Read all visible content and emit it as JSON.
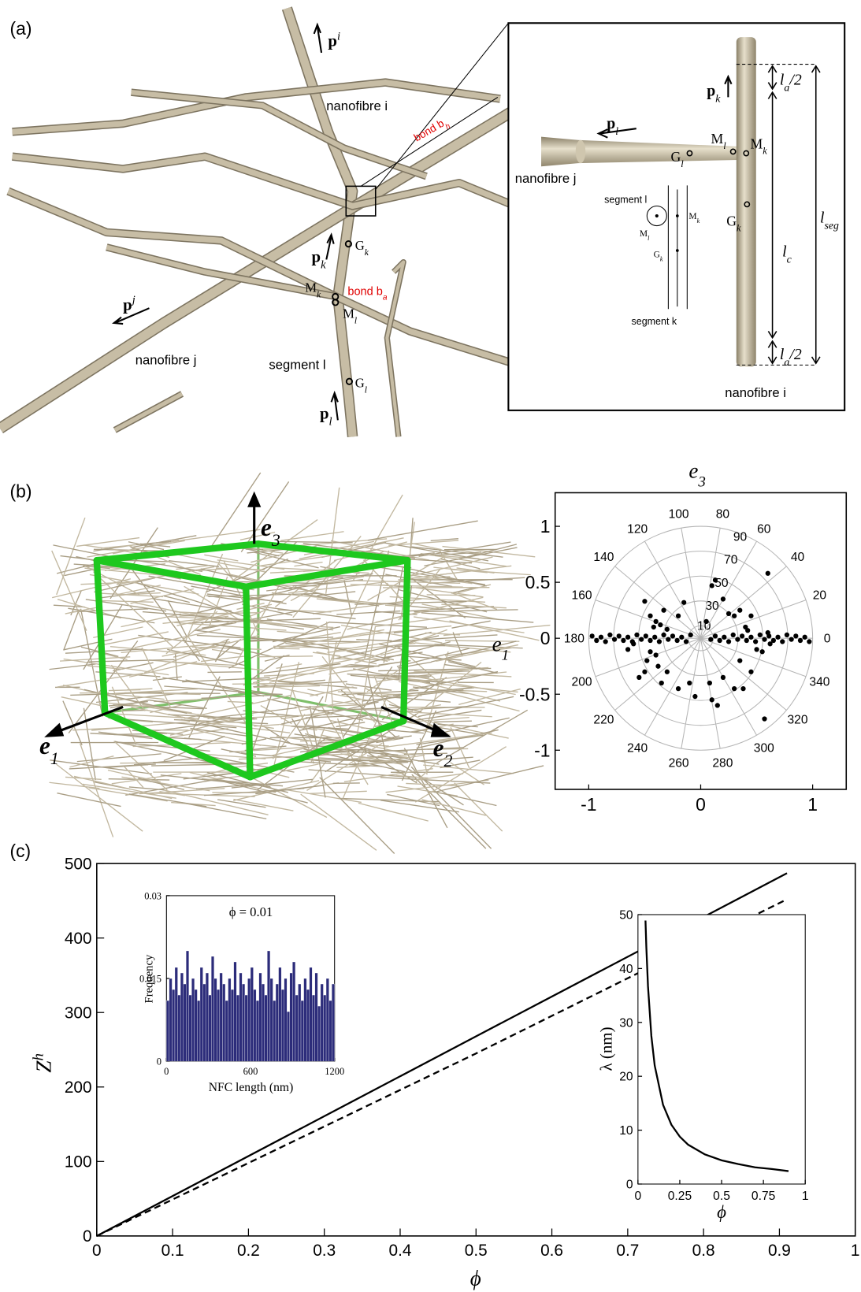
{
  "panel_labels": [
    "(a)",
    "(b)",
    "(c)"
  ],
  "figure_a": {
    "main": [
      {
        "base": "p",
        "sup": "i"
      },
      {
        "base": "nanofibre i"
      },
      {
        "base": "bond b",
        "sub": "h"
      },
      {
        "base": "p",
        "sub": "k"
      },
      {
        "base": "G",
        "sub": "k"
      },
      {
        "base": "M",
        "sub": "k"
      },
      {
        "base": "M",
        "sub": "l"
      },
      {
        "base": "bond b",
        "sub": "a"
      },
      {
        "base": "p",
        "sup": "j"
      },
      {
        "base": "nanofibre j"
      },
      {
        "base": "segment l"
      },
      {
        "base": "G",
        "sub": "l"
      },
      {
        "base": "p",
        "sub": "l"
      }
    ],
    "inset": [
      {
        "base": "p",
        "sub": "k"
      },
      {
        "base": "p",
        "sub": "l"
      },
      {
        "base": "M",
        "sub": "l"
      },
      {
        "base": "M",
        "sub": "k"
      },
      {
        "base": "G",
        "sub": "l"
      },
      {
        "base": "nanofibre j"
      },
      {
        "base": "segment l"
      },
      {
        "base": "M",
        "sub": "l"
      },
      {
        "base": "M",
        "sub": "k"
      },
      {
        "base": "G",
        "sub": "k"
      },
      {
        "base": "segment k"
      },
      {
        "base": "G",
        "sub": "k"
      },
      {
        "base": "l",
        "sub": "a",
        "post": "/2"
      },
      {
        "base": "l",
        "sub": "a",
        "post": "/2"
      },
      {
        "base": "l",
        "sub": "seg"
      },
      {
        "base": "l",
        "sub": "c"
      },
      {
        "base": "nanofibre i"
      }
    ]
  },
  "figure_b": {
    "axes": [
      {
        "base": "e",
        "sub": "3"
      },
      {
        "base": "e",
        "sub": "1"
      },
      {
        "base": "e",
        "sub": "2"
      }
    ]
  },
  "chart_data": [
    {
      "type": "polar_scatter",
      "title": {
        "base": "e",
        "sub": "3"
      },
      "y_label": {
        "base": "e",
        "sub": "1"
      },
      "xlim": [
        -1.3,
        1.3
      ],
      "ylim": [
        -1.35,
        1.3
      ],
      "xticks": [
        -1,
        0,
        1
      ],
      "yticks": [
        -1,
        -0.5,
        0,
        0.5,
        1
      ],
      "rings": [
        10,
        30,
        50,
        70,
        90
      ],
      "angles": [
        0,
        20,
        40,
        60,
        80,
        100,
        120,
        140,
        160,
        180,
        200,
        220,
        240,
        260,
        280,
        300,
        320,
        340
      ],
      "color": "#000000",
      "x": [
        -0.97,
        -0.93,
        -0.89,
        -0.85,
        -0.81,
        -0.77,
        -0.73,
        -0.69,
        -0.65,
        -0.61,
        -0.57,
        -0.53,
        -0.49,
        -0.45,
        -0.41,
        -0.37,
        -0.33,
        -0.29,
        -0.25,
        -0.21,
        -0.17,
        -0.13,
        -0.09,
        0.09,
        0.13,
        0.17,
        0.21,
        0.25,
        0.29,
        0.33,
        0.37,
        0.41,
        0.45,
        0.49,
        0.53,
        0.57,
        0.61,
        0.65,
        0.69,
        0.73,
        0.77,
        0.81,
        0.85,
        0.89,
        0.93,
        0.97,
        0.13,
        0.1,
        -0.5,
        -0.45,
        -0.4,
        -0.42,
        -0.36,
        -0.3,
        -0.33,
        -0.2,
        -0.15,
        0.05,
        0.2,
        0.25,
        0.3,
        0.35,
        0.4,
        0.45,
        0.6,
        0.42,
        -0.45,
        -0.4,
        -0.48,
        -0.5,
        -0.38,
        -0.3,
        -0.35,
        -0.2,
        -0.1,
        -0.05,
        0.1,
        0.15,
        0.08,
        0.2,
        0.3,
        0.38,
        0.45,
        0.35,
        0.5,
        0.55,
        0.57,
        -0.55,
        -0.6,
        -0.65,
        0.6,
        0.62
      ],
      "values": [
        0.02,
        -0.02,
        0.01,
        -0.03,
        0.03,
        -0.01,
        0.02,
        -0.02,
        0.01,
        -0.03,
        0.03,
        -0.01,
        0.02,
        -0.02,
        0.01,
        -0.03,
        0.03,
        -0.01,
        0.02,
        -0.02,
        0.01,
        -0.03,
        0.03,
        -0.01,
        0.02,
        -0.02,
        0.01,
        -0.03,
        0.03,
        -0.01,
        0.02,
        -0.02,
        0.01,
        -0.03,
        0.03,
        -0.01,
        0.02,
        -0.02,
        0.01,
        -0.03,
        0.03,
        -0.01,
        0.02,
        -0.02,
        0.01,
        -0.03,
        0.52,
        0.47,
        0.33,
        0.2,
        0.15,
        0.1,
        0.12,
        0.08,
        0.25,
        0.2,
        0.32,
        0.15,
        0.35,
        0.22,
        0.2,
        0.25,
        0.1,
        0.2,
        0.58,
        0.07,
        -0.12,
        -0.15,
        -0.2,
        -0.3,
        -0.25,
        -0.3,
        -0.4,
        -0.45,
        -0.4,
        -0.52,
        -0.55,
        -0.6,
        -0.4,
        -0.35,
        -0.45,
        -0.45,
        -0.3,
        -0.2,
        -0.1,
        -0.12,
        -0.72,
        -0.35,
        -0.05,
        -0.1,
        0.05,
        -0.05
      ]
    },
    {
      "type": "line",
      "x_label": "ϕ",
      "y_label": {
        "base": "Z",
        "sup": "h"
      },
      "x": [
        0,
        0.5,
        0.91
      ],
      "xlim": [
        0,
        1
      ],
      "ylim": [
        0,
        500
      ],
      "xticks": [
        0,
        0.1,
        0.2,
        0.3,
        0.4,
        0.5,
        0.6,
        0.7,
        0.8,
        0.9,
        1
      ],
      "yticks": [
        0,
        100,
        200,
        300,
        400,
        500
      ],
      "series": [
        {
          "color": "#000000",
          "dash": "solid",
          "values": [
            0,
            268,
            487
          ]
        },
        {
          "color": "#000000",
          "dash": "dashed",
          "values": [
            0,
            245,
            452
          ]
        }
      ]
    },
    {
      "type": "histogram",
      "title": "ϕ = 0.01",
      "x_label": "NFC length (nm)",
      "y_label": "Frequency",
      "xlim": [
        0,
        1200
      ],
      "ylim": [
        0,
        0.03
      ],
      "xticks": [
        0,
        600,
        1200
      ],
      "yticks": [
        0,
        0.015,
        0.03
      ],
      "color": "#2c2c7a",
      "bins": [
        0,
        20,
        40,
        60,
        80,
        100,
        120,
        140,
        160,
        180,
        200,
        220,
        240,
        260,
        280,
        300,
        320,
        340,
        360,
        380,
        400,
        420,
        440,
        460,
        480,
        500,
        520,
        540,
        560,
        580,
        600,
        620,
        640,
        660,
        680,
        700,
        720,
        740,
        760,
        780,
        800,
        820,
        840,
        860,
        880,
        900,
        920,
        940,
        960,
        980,
        1000,
        1020,
        1040,
        1060,
        1080,
        1100,
        1120,
        1140,
        1160,
        1180,
        1200
      ],
      "values": [
        0.011,
        0.015,
        0.013,
        0.017,
        0.012,
        0.016,
        0.014,
        0.02,
        0.012,
        0.015,
        0.013,
        0.011,
        0.017,
        0.014,
        0.016,
        0.012,
        0.019,
        0.015,
        0.013,
        0.016,
        0.014,
        0.011,
        0.015,
        0.013,
        0.018,
        0.012,
        0.016,
        0.014,
        0.012,
        0.015,
        0.017,
        0.013,
        0.011,
        0.016,
        0.014,
        0.012,
        0.02,
        0.015,
        0.011,
        0.014,
        0.017,
        0.013,
        0.015,
        0.009,
        0.016,
        0.018,
        0.012,
        0.014,
        0.011,
        0.015,
        0.013,
        0.017,
        0.012,
        0.016,
        0.01,
        0.014,
        0.012,
        0.015,
        0.011,
        0.014
      ]
    },
    {
      "type": "line",
      "x_label": "ϕ",
      "y_label": "λ (nm)",
      "x": [
        0.045,
        0.05,
        0.06,
        0.08,
        0.1,
        0.15,
        0.2,
        0.25,
        0.3,
        0.4,
        0.5,
        0.6,
        0.7,
        0.8,
        0.9
      ],
      "xlim": [
        0,
        1
      ],
      "ylim": [
        0,
        50
      ],
      "xticks": [
        0,
        0.25,
        0.5,
        0.75,
        1
      ],
      "yticks": [
        0,
        10,
        20,
        30,
        40,
        50
      ],
      "series": [
        {
          "color": "#000000",
          "dash": "solid",
          "values": [
            48.9,
            44,
            36.7,
            27.5,
            22,
            14.7,
            11,
            8.8,
            7.3,
            5.5,
            4.4,
            3.7,
            3.1,
            2.8,
            2.4
          ]
        }
      ]
    }
  ]
}
